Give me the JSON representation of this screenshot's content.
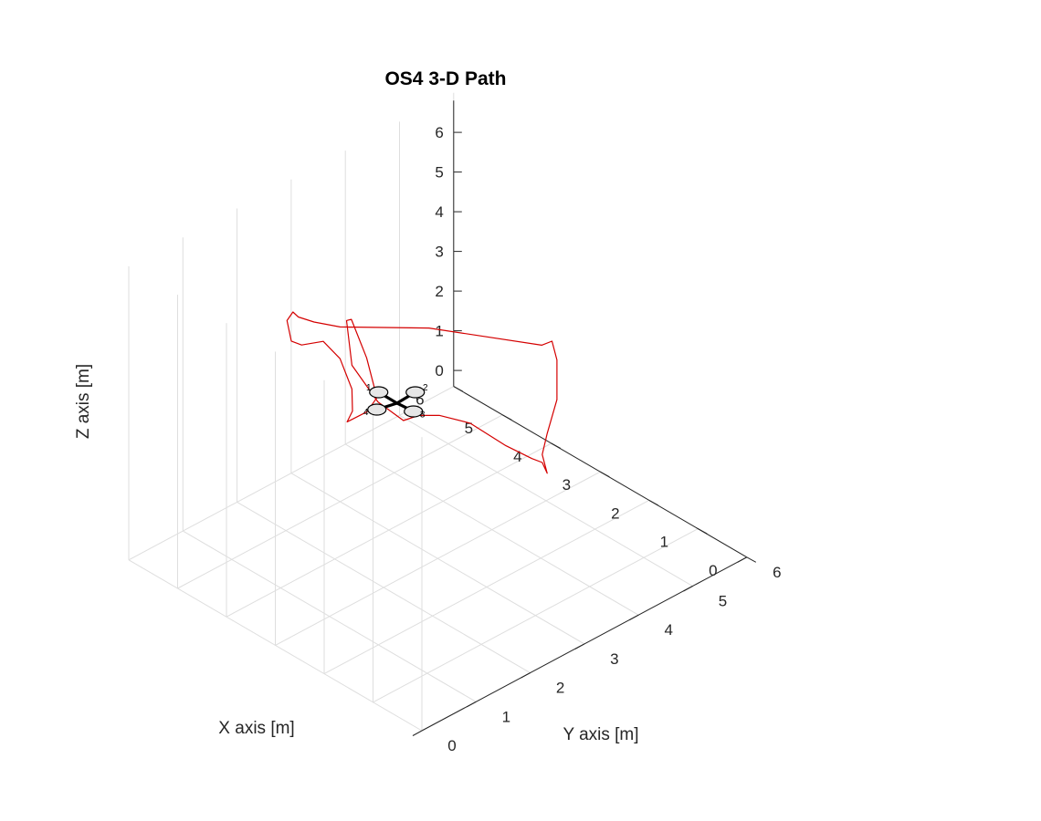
{
  "chart_data": {
    "type": "line",
    "projection": "3d",
    "title": "OS4 3-D Path",
    "xlabel": "X axis   [m]",
    "ylabel": "Y axis   [m]",
    "zlabel": "Z axis   [m]",
    "xlim": [
      0,
      6
    ],
    "ylim": [
      0,
      6
    ],
    "zlim": [
      0,
      6
    ],
    "xticks": [
      "0",
      "1",
      "2",
      "3",
      "4",
      "5",
      "6"
    ],
    "yticks": [
      "0",
      "1",
      "2",
      "3",
      "4",
      "5",
      "6"
    ],
    "zticks": [
      "0",
      "1",
      "2",
      "3",
      "4",
      "5",
      "6"
    ],
    "grid": true,
    "line_color": "#d40000",
    "series": [
      {
        "points": [
          [
            3.3,
            5.2,
            0.2
          ],
          [
            3.2,
            5.2,
            0.0
          ],
          [
            3.3,
            5.2,
            0.4
          ],
          [
            3.2,
            5.2,
            1.0
          ],
          [
            3.0,
            5.2,
            2.0
          ],
          [
            3.0,
            5.2,
            3.0
          ],
          [
            3.1,
            5.2,
            3.4
          ],
          [
            3.2,
            5.1,
            3.3
          ],
          [
            4.4,
            4.1,
            3.6
          ],
          [
            5.0,
            3.0,
            4.0
          ],
          [
            5.2,
            2.7,
            4.2
          ],
          [
            5.3,
            2.5,
            4.4
          ],
          [
            5.3,
            2.4,
            4.6
          ],
          [
            5.2,
            2.2,
            4.6
          ],
          [
            5.0,
            2.1,
            4.3
          ],
          [
            4.9,
            2.2,
            4.2
          ],
          [
            4.9,
            2.6,
            4.0
          ],
          [
            5.0,
            3.0,
            3.2
          ],
          [
            5.2,
            3.4,
            2.0
          ],
          [
            5.3,
            3.5,
            1.3
          ],
          [
            5.3,
            3.4,
            1.1
          ],
          [
            5.0,
            3.5,
            1.5
          ],
          [
            4.8,
            3.5,
            2.0
          ],
          [
            4.9,
            3.4,
            3.0
          ],
          [
            5.1,
            3.3,
            3.9
          ],
          [
            5.2,
            3.3,
            3.8
          ],
          [
            5.2,
            3.4,
            2.6
          ],
          [
            5.0,
            3.7,
            1.6
          ],
          [
            4.7,
            3.9,
            1.2
          ],
          [
            4.5,
            4.0,
            1.4
          ],
          [
            4.3,
            4.2,
            1.4
          ],
          [
            4.0,
            4.5,
            1.2
          ],
          [
            3.6,
            4.8,
            0.7
          ],
          [
            3.4,
            5.1,
            0.3
          ],
          [
            3.3,
            5.2,
            0.2
          ]
        ]
      }
    ],
    "quadrotor": {
      "position": [
        4.5,
        3.6,
        2.0
      ],
      "rotor_labels": [
        "1",
        "2",
        "3",
        "4"
      ]
    }
  }
}
